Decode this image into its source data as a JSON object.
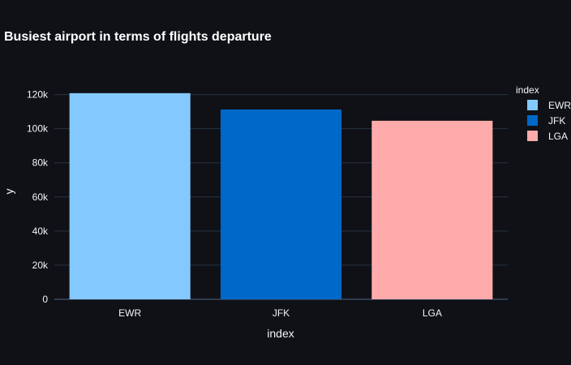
{
  "chart_data": {
    "type": "bar",
    "title": "Busiest airport in terms of flights departure",
    "xlabel": "index",
    "ylabel": "y",
    "categories": [
      "EWR",
      "JFK",
      "LGA"
    ],
    "values": [
      120835,
      111279,
      104662
    ],
    "colors": [
      "#83c9ff",
      "#0068c9",
      "#ffabab"
    ],
    "ylim": [
      0,
      126000
    ],
    "yticks": [
      0,
      20000,
      40000,
      60000,
      80000,
      100000,
      120000
    ],
    "ytick_labels": [
      "0",
      "20k",
      "40k",
      "60k",
      "80k",
      "100k",
      "120k"
    ],
    "grid": true,
    "legend": {
      "title": "index",
      "placement": "right",
      "entries": [
        "EWR",
        "JFK",
        "LGA"
      ]
    }
  },
  "colors": {
    "background": "#0f1117",
    "grid": "#283442",
    "text": "#f2f5fa"
  }
}
